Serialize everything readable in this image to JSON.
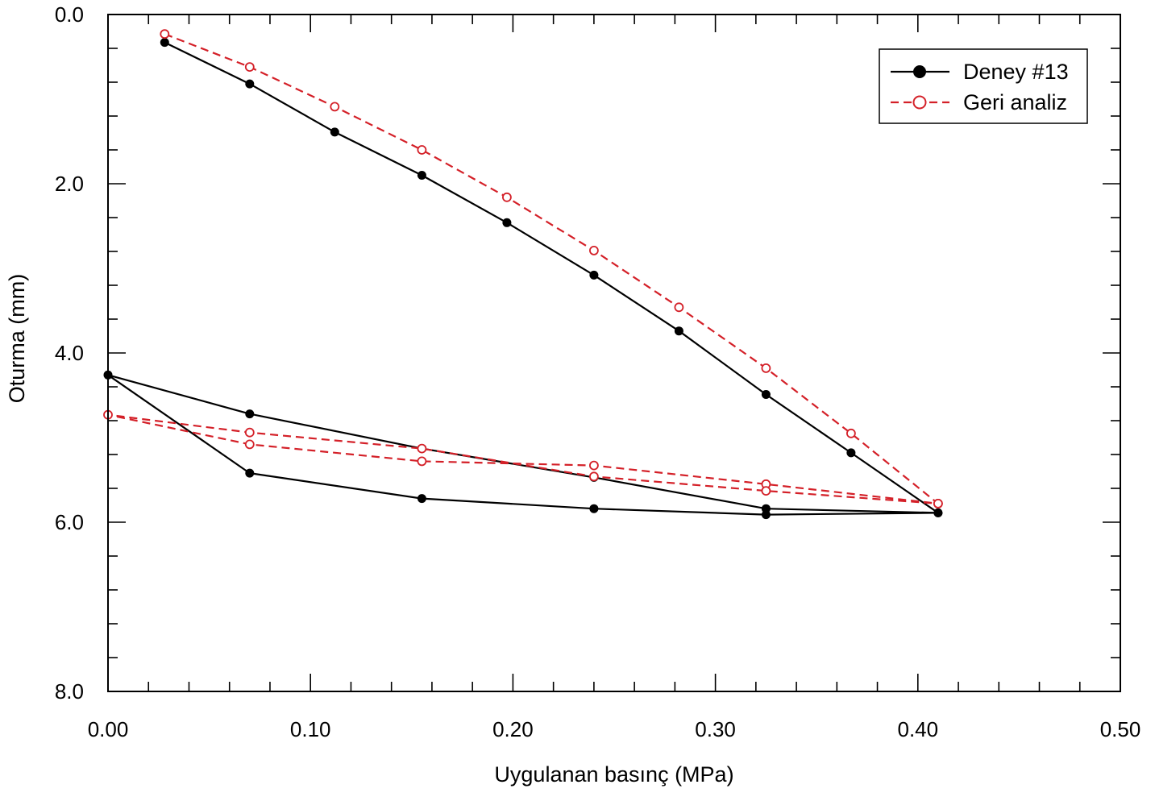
{
  "chart_data": {
    "type": "line",
    "title": "",
    "xlabel": "Uygulanan basınç (MPa)",
    "ylabel": "Oturma (mm)",
    "xlim": [
      0.0,
      0.5
    ],
    "ylim": [
      0.0,
      8.0
    ],
    "y_inverted": true,
    "x_ticks": [
      "0.00",
      "0.10",
      "0.20",
      "0.30",
      "0.40",
      "0.50"
    ],
    "y_ticks": [
      "0.0",
      "2.0",
      "4.0",
      "6.0",
      "8.0"
    ],
    "x_minor_step": 0.02,
    "y_minor_step": 0.4,
    "grid": false,
    "legend_position": "top-right",
    "series": [
      {
        "name": "Deney #13",
        "color": "#000000",
        "line_style": "solid",
        "marker": "filled-circle",
        "x": [
          0.028,
          0.07,
          0.112,
          0.155,
          0.197,
          0.24,
          0.282,
          0.325,
          0.367,
          0.41,
          0.325,
          0.24,
          0.155,
          0.07,
          0.0,
          0.07,
          0.155,
          0.24,
          0.325,
          0.41
        ],
        "y": [
          0.33,
          0.82,
          1.39,
          1.9,
          2.46,
          3.08,
          3.74,
          4.49,
          5.18,
          5.89,
          5.84,
          5.47,
          5.13,
          4.72,
          4.26,
          5.42,
          5.72,
          5.84,
          5.91,
          5.89
        ]
      },
      {
        "name": "Geri analiz",
        "color": "#d42028",
        "line_style": "dashed",
        "marker": "open-circle",
        "x": [
          0.028,
          0.07,
          0.112,
          0.155,
          0.197,
          0.24,
          0.282,
          0.325,
          0.367,
          0.41,
          0.325,
          0.24,
          0.155,
          0.07,
          0.0,
          0.07,
          0.155,
          0.24,
          0.325,
          0.41
        ],
        "y": [
          0.23,
          0.62,
          1.09,
          1.6,
          2.16,
          2.79,
          3.46,
          4.18,
          4.95,
          5.78,
          5.55,
          5.33,
          5.28,
          5.08,
          4.73,
          4.94,
          5.13,
          5.46,
          5.63,
          5.78
        ]
      }
    ]
  }
}
